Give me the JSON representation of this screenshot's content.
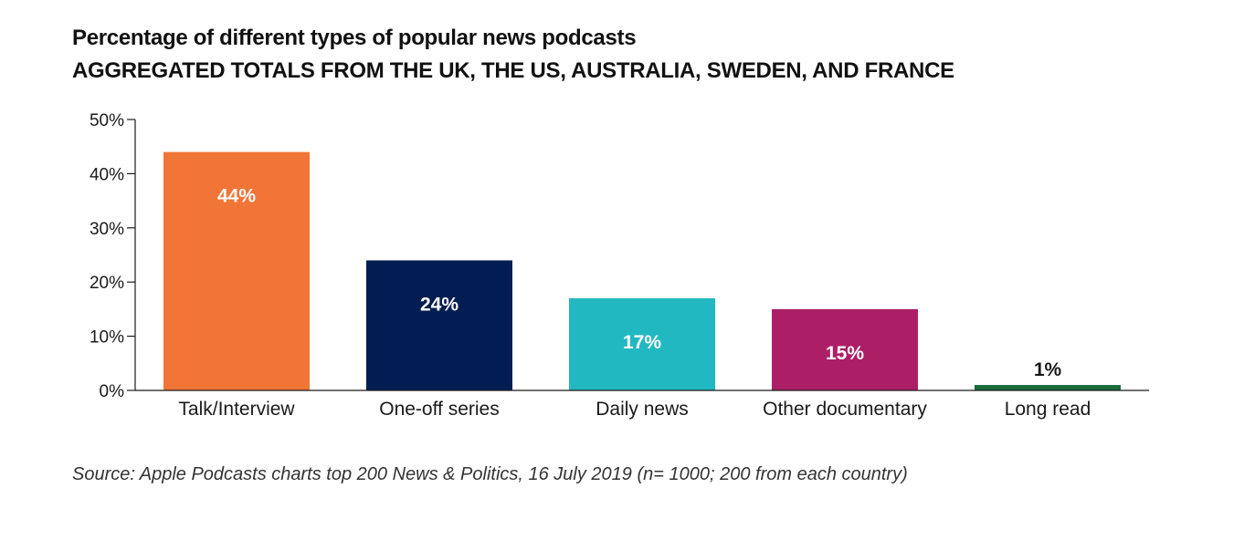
{
  "title": "Percentage of different types of popular news podcasts",
  "subtitle": "AGGREGATED TOTALS FROM THE UK, THE US, AUSTRALIA, SWEDEN, AND FRANCE",
  "source": "Source: Apple Podcasts charts top 200 News & Politics, 16 July 2019 (n= 1000;  200 from each country)",
  "chart_data": {
    "type": "bar",
    "categories": [
      "Talk/Interview",
      "One-off series",
      "Daily news",
      "Other documentary",
      "Long read"
    ],
    "values": [
      44,
      24,
      17,
      15,
      1
    ],
    "value_labels": [
      "44%",
      "24%",
      "17%",
      "15%",
      "1%"
    ],
    "colors": [
      "#f07536",
      "#021d52",
      "#22b8c1",
      "#ac1f67",
      "#1a6b3a"
    ],
    "ylim": [
      0,
      50
    ],
    "yticks": [
      0,
      10,
      20,
      30,
      40,
      50
    ],
    "ytick_labels": [
      "0%",
      "10%",
      "20%",
      "30%",
      "40%",
      "50%"
    ],
    "xlabel": "",
    "ylabel": "",
    "grid": false,
    "legend": "none",
    "label_color_inside": "#ffffff",
    "label_color_outside": "#1a1a1a",
    "axis_color": "#1a1a1a"
  }
}
